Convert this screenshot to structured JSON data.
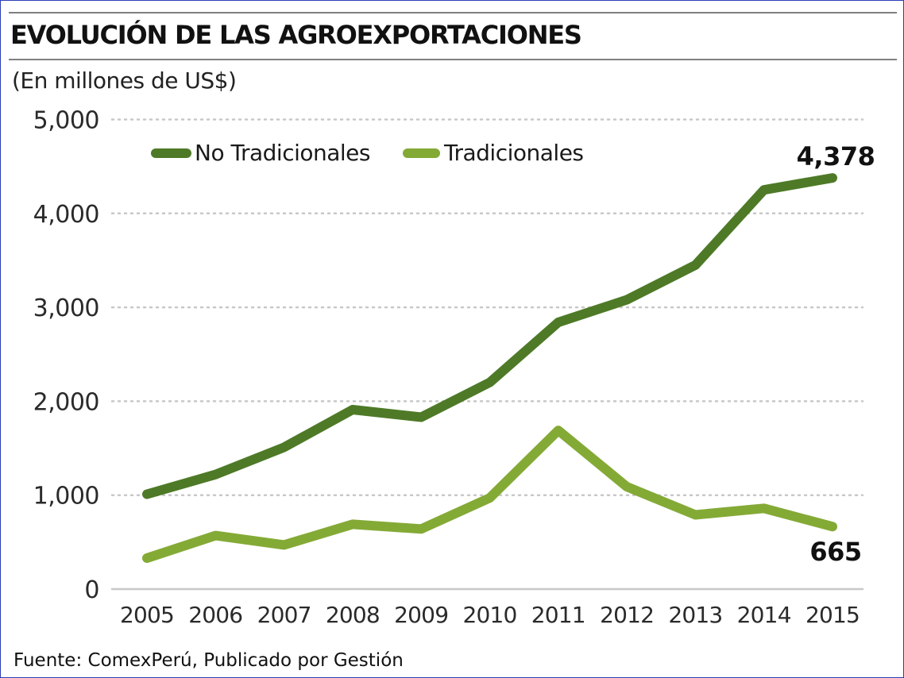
{
  "header": {
    "title": "EVOLUCIÓN DE LAS AGROEXPORTACIONES",
    "subtitle": "(En millones de US$)"
  },
  "footer": {
    "source": "Fuente: ComexPerú, Publicado por Gestión"
  },
  "colors": {
    "no_tradicionales": "#4e7a27",
    "tradicionales": "#84aa36",
    "grid": "#c8c8c8",
    "tick_text": "#2a2a2a",
    "annotation": "#111111"
  },
  "chart_data": {
    "type": "line",
    "title": "EVOLUCIÓN DE LAS AGROEXPORTACIONES",
    "ylabel": "(En millones de US$)",
    "xlabel": "",
    "x": [
      "2005",
      "2006",
      "2007",
      "2008",
      "2009",
      "2010",
      "2011",
      "2012",
      "2013",
      "2014",
      "2015"
    ],
    "ylim": [
      0,
      5000
    ],
    "yticks": [
      0,
      1000,
      2000,
      3000,
      4000,
      5000
    ],
    "ytick_labels": [
      "0",
      "1,000",
      "2,000",
      "3,000",
      "4,000",
      "5,000"
    ],
    "grid": "horizontal dotted",
    "legend_position": "top-left",
    "series": [
      {
        "name": "No Tradicionales",
        "color": "#4e7a27",
        "values": [
          1010,
          1220,
          1510,
          1910,
          1830,
          2200,
          2840,
          3080,
          3450,
          4250,
          4378
        ]
      },
      {
        "name": "Tradicionales",
        "color": "#84aa36",
        "values": [
          330,
          570,
          470,
          690,
          640,
          970,
          1690,
          1090,
          790,
          860,
          665
        ]
      }
    ],
    "annotations": [
      {
        "series": 0,
        "x": "2015",
        "text": "4,378"
      },
      {
        "series": 1,
        "x": "2015",
        "text": "665"
      }
    ]
  }
}
